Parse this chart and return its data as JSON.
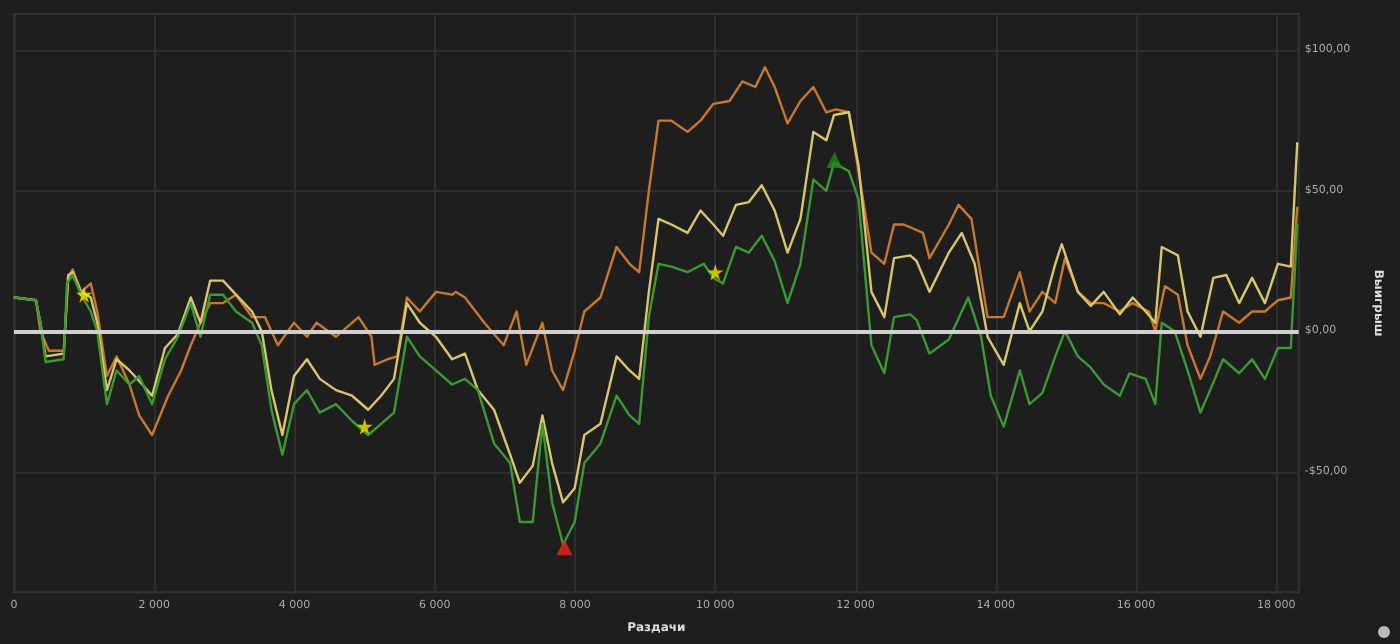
{
  "chart_data": {
    "type": "line",
    "xlabel": "Раздачи",
    "ylabel": "Выигрыш",
    "xlim": [
      0,
      18320
    ],
    "ylim": [
      -93,
      113
    ],
    "xticks": [
      0,
      {
        "value": 2000,
        "label": "2 000"
      },
      {
        "value": 4000,
        "label": "4 000"
      },
      {
        "value": 6000,
        "label": "6 000"
      },
      {
        "value": 8000,
        "label": "8 000"
      },
      {
        "value": 10000,
        "label": "10 000"
      },
      {
        "value": 12000,
        "label": "12 000"
      },
      {
        "value": 14000,
        "label": "14 000"
      },
      {
        "value": 16000,
        "label": "16 000"
      },
      {
        "value": 18000,
        "label": "18 000"
      }
    ],
    "yticks": [
      {
        "value": -50,
        "label": "-$50,00"
      },
      {
        "value": 0,
        "label": "$0,00"
      },
      {
        "value": 50,
        "label": "$50,00"
      },
      {
        "value": 100,
        "label": "$100,00"
      }
    ],
    "grid": true,
    "marker": "none",
    "line_style": "solid",
    "ref_lines": [
      {
        "axis": "y",
        "value": 0,
        "color": "#d0d0d0"
      }
    ],
    "series": [
      {
        "color": "#c8782e",
        "x": [
          10,
          313,
          377,
          497,
          709,
          773,
          837,
          957,
          1095,
          1187,
          1325,
          1463,
          1647,
          1785,
          1969,
          2199,
          2383,
          2521,
          2659,
          2797,
          2981,
          3165,
          3395,
          3579,
          3763,
          3993,
          4177,
          4315,
          4591,
          4913,
          5097,
          5143,
          5327,
          5465,
          5603,
          5787,
          6017,
          6247,
          6300,
          6431,
          6707,
          6983,
          7167,
          7305,
          7535,
          7673,
          7829,
          7995,
          8133,
          8363,
          8593,
          8777,
          8915,
          9053,
          9191,
          9375,
          9605,
          9789,
          9973,
          10203,
          10387,
          10571,
          10709,
          10847,
          11031,
          11215,
          11399,
          11583,
          11721,
          11905,
          12043,
          12227,
          12411,
          12549,
          12687,
          12963,
          13055,
          13331,
          13469,
          13653,
          13883,
          14113,
          14343,
          14481,
          14665,
          14849,
          14987,
          15171,
          15355,
          15539,
          15769,
          15953,
          16183,
          16275,
          16413,
          16597,
          16735,
          16919,
          17057,
          17241,
          17471,
          17655,
          17839,
          18023,
          18207,
          18299
        ],
        "values": [
          12,
          11,
          0,
          -7,
          -7,
          19,
          22,
          14,
          17,
          7,
          -16,
          -9,
          -19,
          -30,
          -37,
          -23,
          -14,
          -5,
          3,
          10,
          10,
          13,
          5,
          5,
          -5,
          3,
          -2,
          3,
          -2,
          5,
          -2,
          -12,
          -10,
          -9,
          12,
          7,
          14,
          13,
          14,
          12,
          3,
          -5,
          7,
          -12,
          3,
          -14,
          -21,
          -7,
          7,
          12,
          30,
          24,
          21,
          50,
          75,
          75,
          71,
          75,
          81,
          82,
          89,
          87,
          94,
          87,
          74,
          82,
          87,
          78,
          79,
          78,
          57,
          28,
          24,
          38,
          38,
          35,
          26,
          38,
          45,
          40,
          5,
          5,
          21,
          7,
          14,
          10,
          26,
          14,
          10,
          10,
          7,
          10,
          7,
          0,
          16,
          13,
          -5,
          -17,
          -9,
          7,
          3,
          7,
          7,
          11,
          12,
          44
        ]
      },
      {
        "color": "#d8c66c",
        "x": [
          10,
          313,
          377,
          451,
          709,
          773,
          837,
          957,
          1095,
          1187,
          1325,
          1463,
          1647,
          1831,
          1969,
          2153,
          2337,
          2521,
          2659,
          2797,
          2981,
          3165,
          3395,
          3533,
          3671,
          3827,
          3993,
          4177,
          4361,
          4591,
          4821,
          5051,
          5235,
          5419,
          5603,
          5787,
          6017,
          6247,
          6431,
          6615,
          6845,
          7075,
          7213,
          7397,
          7535,
          7673,
          7829,
          7995,
          8133,
          8363,
          8593,
          8777,
          8915,
          9053,
          9191,
          9375,
          9605,
          9789,
          9973,
          10111,
          10295,
          10479,
          10663,
          10847,
          11031,
          11215,
          11399,
          11583,
          11693,
          11905,
          12043,
          12227,
          12411,
          12549,
          12779,
          12871,
          13055,
          13331,
          13515,
          13699,
          13883,
          14113,
          14343,
          14481,
          14665,
          14849,
          14941,
          15171,
          15355,
          15539,
          15769,
          15953,
          16137,
          16275,
          16367,
          16597,
          16735,
          16919,
          17103,
          17287,
          17471,
          17655,
          17839,
          18023,
          18207,
          18299
        ],
        "values": [
          12,
          11,
          3,
          -9,
          -8,
          20,
          21,
          14,
          12,
          3,
          -21,
          -10,
          -14,
          -19,
          -23,
          -6,
          -1,
          12,
          3,
          18,
          18,
          13,
          7,
          0,
          -21,
          -37,
          -16,
          -10,
          -17,
          -21,
          -23,
          -28,
          -23,
          -17,
          10,
          3,
          -2,
          -10,
          -8,
          -21,
          -28,
          -44,
          -54,
          -48,
          -30,
          -47,
          -61,
          -56,
          -37,
          -33,
          -9,
          -14,
          -17,
          14,
          40,
          38,
          35,
          43,
          38,
          34,
          45,
          46,
          52,
          43,
          28,
          40,
          71,
          68,
          77,
          78,
          59,
          14,
          5,
          26,
          27,
          25,
          14,
          28,
          35,
          24,
          -2,
          -12,
          10,
          0,
          7,
          24,
          31,
          14,
          9,
          14,
          6,
          12,
          7,
          3,
          30,
          27,
          7,
          -2,
          19,
          20,
          10,
          19,
          10,
          24,
          23,
          67
        ]
      },
      {
        "color": "#3a9a32",
        "x": [
          10,
          313,
          377,
          451,
          709,
          755,
          837,
          957,
          1095,
          1187,
          1325,
          1463,
          1647,
          1785,
          1969,
          2153,
          2337,
          2521,
          2659,
          2797,
          2981,
          3165,
          3395,
          3533,
          3671,
          3827,
          3993,
          4177,
          4361,
          4591,
          4821,
          5051,
          5235,
          5419,
          5603,
          5787,
          6017,
          6247,
          6431,
          6615,
          6845,
          7075,
          7213,
          7397,
          7535,
          7673,
          7829,
          7995,
          8133,
          8363,
          8593,
          8777,
          8915,
          9053,
          9191,
          9375,
          9605,
          9835,
          9973,
          10111,
          10295,
          10479,
          10663,
          10847,
          11031,
          11215,
          11399,
          11583,
          11693,
          11905,
          12043,
          12227,
          12411,
          12549,
          12779,
          12871,
          13055,
          13331,
          13607,
          13791,
          13929,
          14113,
          14343,
          14481,
          14665,
          14849,
          14987,
          15171,
          15355,
          15539,
          15769,
          15907,
          16137,
          16275,
          16367,
          16551,
          16735,
          16919,
          17057,
          17241,
          17471,
          17655,
          17839,
          18023,
          18207,
          18299
        ],
        "values": [
          12,
          11,
          3,
          -11,
          -10,
          17,
          20,
          13,
          7,
          0,
          -26,
          -14,
          -19,
          -16,
          -26,
          -10,
          -2,
          10,
          -2,
          13,
          13,
          7,
          3,
          -5,
          -28,
          -44,
          -26,
          -21,
          -29,
          -26,
          -32,
          -37,
          -33,
          -29,
          -2,
          -9,
          -14,
          -19,
          -17,
          -21,
          -40,
          -47,
          -68,
          -68,
          -33,
          -61,
          -76,
          -68,
          -47,
          -40,
          -23,
          -30,
          -33,
          5,
          24,
          23,
          21,
          24,
          19,
          17,
          30,
          28,
          34,
          25,
          10,
          24,
          54,
          50,
          60,
          57,
          47,
          -5,
          -15,
          5,
          6,
          4,
          -8,
          -3,
          12,
          -2,
          -23,
          -34,
          -14,
          -26,
          -22,
          -9,
          0,
          -9,
          -13,
          -19,
          -23,
          -15,
          -17,
          -26,
          3,
          0,
          -14,
          -29,
          -21,
          -10,
          -15,
          -10,
          -17,
          -6,
          -6,
          38
        ]
      },
      {
        "type": "scatter",
        "marker": "star",
        "color": "#f5e600",
        "x": [
          1000,
          5000,
          10000
        ],
        "values": [
          13,
          -34,
          21
        ]
      },
      {
        "type": "scatter",
        "marker": "triangle",
        "color": "#e8241c",
        "x": [
          7850
        ],
        "values": [
          -77
        ]
      },
      {
        "type": "scatter",
        "marker": "triangle",
        "color": "#1f8a1a",
        "x": [
          11700
        ],
        "values": [
          61
        ]
      }
    ]
  }
}
